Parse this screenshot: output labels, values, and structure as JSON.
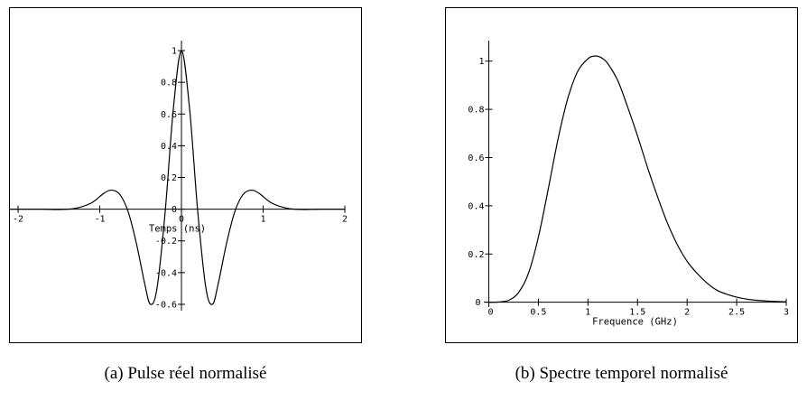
{
  "chart_data": [
    {
      "type": "line",
      "xlabel": "Temps (ns)",
      "ylabel": "",
      "xlim": [
        -2.1,
        2.0
      ],
      "ylim": [
        -0.64,
        1.04
      ],
      "xticks": [
        -2,
        -1,
        0,
        1,
        2
      ],
      "yticks": [
        -0.6,
        -0.4,
        -0.2,
        0,
        0.2,
        0.4,
        0.6,
        0.8,
        1
      ],
      "grid": false,
      "caption": "(a) Pulse réel normalisé",
      "series": [
        {
          "x": [
            -2.1,
            -1.7,
            -1.5,
            -1.3,
            -1.1,
            -0.95,
            -0.85,
            -0.75,
            -0.65,
            -0.55,
            -0.45,
            -0.38,
            -0.3,
            -0.2,
            -0.1,
            0,
            0.1,
            0.2,
            0.3,
            0.38,
            0.45,
            0.55,
            0.65,
            0.75,
            0.85,
            0.95,
            1.1,
            1.3,
            1.5,
            1.7,
            2.0
          ],
          "y": [
            0,
            0,
            -0.002,
            0.005,
            0.04,
            0.1,
            0.12,
            0.09,
            -0.02,
            -0.22,
            -0.47,
            -0.6,
            -0.5,
            -0.02,
            0.63,
            1.0,
            0.63,
            -0.02,
            -0.5,
            -0.6,
            -0.47,
            -0.22,
            -0.02,
            0.09,
            0.12,
            0.1,
            0.04,
            0.005,
            -0.002,
            0,
            0
          ]
        }
      ]
    },
    {
      "type": "line",
      "xlabel": "Frequence (GHz)",
      "ylabel": "",
      "xlim": [
        -0.05,
        3.0
      ],
      "ylim": [
        -0.02,
        1.07
      ],
      "xticks": [
        0,
        0.5,
        1,
        1.5,
        2,
        2.5,
        3
      ],
      "xtick_labels": [
        "0",
        "0.5",
        "1",
        "1.5",
        "2",
        "2.5",
        "3"
      ],
      "yticks": [
        0,
        0.2,
        0.4,
        0.6,
        0.8,
        1
      ],
      "ytick_labels": [
        "0",
        "0.2",
        "0.4",
        "0.6",
        "0.8",
        "1"
      ],
      "grid": false,
      "caption": "(b) Spectre temporel normalisé",
      "series": [
        {
          "x": [
            0,
            0.1,
            0.2,
            0.3,
            0.4,
            0.5,
            0.6,
            0.7,
            0.8,
            0.9,
            1.0,
            1.05,
            1.1,
            1.15,
            1.2,
            1.3,
            1.4,
            1.5,
            1.6,
            1.7,
            1.8,
            1.9,
            2.0,
            2.1,
            2.2,
            2.3,
            2.4,
            2.5,
            2.6,
            2.7,
            2.8,
            2.9,
            3.0
          ],
          "y": [
            0,
            0.001,
            0.008,
            0.04,
            0.12,
            0.27,
            0.47,
            0.68,
            0.85,
            0.96,
            1.01,
            1.02,
            1.02,
            1.01,
            0.99,
            0.92,
            0.81,
            0.69,
            0.56,
            0.44,
            0.33,
            0.24,
            0.17,
            0.12,
            0.08,
            0.05,
            0.033,
            0.021,
            0.013,
            0.008,
            0.005,
            0.003,
            0.002
          ]
        }
      ]
    }
  ]
}
